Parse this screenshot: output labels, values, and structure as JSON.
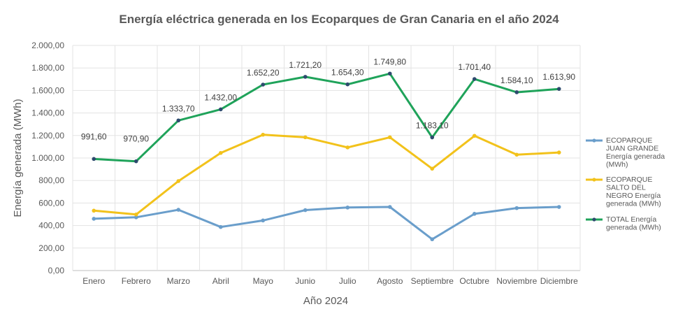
{
  "chart_data": {
    "type": "line",
    "title": "Energía eléctrica generada en los Ecoparques de Gran Canaria en el año 2024",
    "xlabel": "Año 2024",
    "ylabel": "Energía generada (MWh)",
    "ylim": [
      0,
      2000
    ],
    "yticks": [
      "0,00",
      "200,00",
      "400,00",
      "600,00",
      "800,00",
      "1.000,00",
      "1.200,00",
      "1.400,00",
      "1.600,00",
      "1.800,00",
      "2.000,00"
    ],
    "categories": [
      "Enero",
      "Febrero",
      "Marzo",
      "Abril",
      "Mayo",
      "Junio",
      "Julio",
      "Agosto",
      "Septiembre",
      "Octubre",
      "Noviembre",
      "Diciembre"
    ],
    "grid": true,
    "legend_position": "right",
    "series": [
      {
        "name": "ECOPARQUE JUAN GRANDE Energía generada (MWh)",
        "legend_lines": [
          "ECOPARQUE",
          "JUAN GRANDE",
          "Energía generada",
          "(MWh)"
        ],
        "color": "#6a9ecb",
        "values": [
          460,
          473,
          540,
          387,
          445,
          537,
          560,
          565,
          278,
          504,
          555,
          565
        ]
      },
      {
        "name": "ECOPARQUE SALTO DEL NEGRO Energía generada (MWh)",
        "legend_lines": [
          "ECOPARQUE",
          "SALTO DEL",
          "NEGRO Energía",
          "generada (MWh)"
        ],
        "color": "#f2c21b",
        "values": [
          532,
          498,
          795,
          1045,
          1207,
          1184,
          1094,
          1184,
          905,
          1197,
          1029,
          1049
        ]
      },
      {
        "name": "TOTAL Energía generada (MWh)",
        "legend_lines": [
          "TOTAL Energía",
          "generada (MWh)"
        ],
        "color": "#1fa35a",
        "marker_color": "#2e4a6e",
        "values": [
          991.6,
          970.9,
          1333.7,
          1432.0,
          1652.2,
          1721.2,
          1654.3,
          1749.8,
          1183.1,
          1701.4,
          1584.1,
          1613.9
        ],
        "data_labels": [
          "991,60",
          "970,90",
          "1.333,70",
          "1.432,00",
          "1.652,20",
          "1.721,20",
          "1.654,30",
          "1.749,80",
          "1.183,10",
          "1.701,40",
          "1.584,10",
          "1.613,90"
        ]
      }
    ]
  }
}
